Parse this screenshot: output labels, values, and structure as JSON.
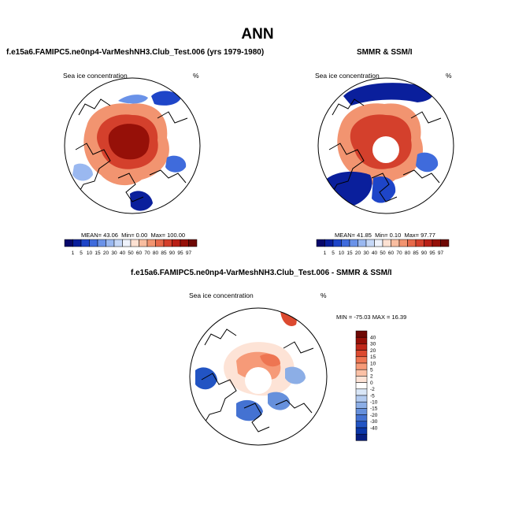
{
  "page_title": "ANN",
  "chart_data": [
    {
      "type": "heatmap",
      "projection": "north polar stereographic",
      "title": "f.e15a6.FAMIPC5.ne0np4-VarMeshNH3.Club_Test.006 (yrs 1979-1980)",
      "field_label": "Sea ice concentration",
      "units": "%",
      "stats": {
        "mean_label": "MEAN=",
        "mean": "43.06",
        "min_label": "Min=",
        "min": "0.00",
        "max_label": "Max=",
        "max": "100.00"
      },
      "colorbar": {
        "orientation": "horizontal",
        "labels": [
          "1",
          "5",
          "10",
          "15",
          "20",
          "30",
          "40",
          "50",
          "60",
          "70",
          "80",
          "85",
          "90",
          "95",
          "97"
        ],
        "colors": [
          "#08086b",
          "#0a1f9c",
          "#1e45c8",
          "#3f6bdc",
          "#6a92e8",
          "#9ab8f0",
          "#c6d8f7",
          "#eef2fb",
          "#fde1d2",
          "#f8bda0",
          "#f29470",
          "#e7694a",
          "#d4402c",
          "#b81f16",
          "#961008",
          "#6e0804"
        ]
      }
    },
    {
      "type": "heatmap",
      "projection": "north polar stereographic",
      "title": "SMMR & SSM/I",
      "field_label": "Sea ice concentration",
      "units": "%",
      "stats": {
        "mean_label": "MEAN=",
        "mean": "41.85",
        "min_label": "Min=",
        "min": "0.10",
        "max_label": "Max=",
        "max": "97.77"
      },
      "colorbar": {
        "orientation": "horizontal",
        "labels": [
          "1",
          "5",
          "10",
          "15",
          "20",
          "30",
          "40",
          "50",
          "60",
          "70",
          "80",
          "85",
          "90",
          "95",
          "97"
        ],
        "colors": [
          "#08086b",
          "#0a1f9c",
          "#1e45c8",
          "#3f6bdc",
          "#6a92e8",
          "#9ab8f0",
          "#c6d8f7",
          "#eef2fb",
          "#fde1d2",
          "#f8bda0",
          "#f29470",
          "#e7694a",
          "#d4402c",
          "#b81f16",
          "#961008",
          "#6e0804"
        ]
      }
    },
    {
      "type": "heatmap",
      "projection": "north polar stereographic",
      "title": "f.e15a6.FAMIPC5.ne0np4-VarMeshNH3.Club_Test.006 - SMMR & SSM/I",
      "field_label": "Sea ice concentration",
      "units": "%",
      "stats": {
        "min_label": "MIN =",
        "min": "-75.03",
        "max_label": "MAX =",
        "max": "16.39"
      },
      "colorbar": {
        "orientation": "vertical",
        "labels": [
          "40",
          "30",
          "20",
          "15",
          "10",
          "5",
          "2",
          "0",
          "-2",
          "-5",
          "-10",
          "-15",
          "-20",
          "-30",
          "-40"
        ],
        "colors": [
          "#6e0804",
          "#961008",
          "#c0281a",
          "#dc4a30",
          "#ee7552",
          "#f69a78",
          "#fbc1a6",
          "#fde3d6",
          "#ffffff",
          "#d9e6f7",
          "#b3cbf0",
          "#8caee6",
          "#6690dc",
          "#4472d2",
          "#2254c3",
          "#0a36a8",
          "#061e80"
        ]
      }
    }
  ]
}
